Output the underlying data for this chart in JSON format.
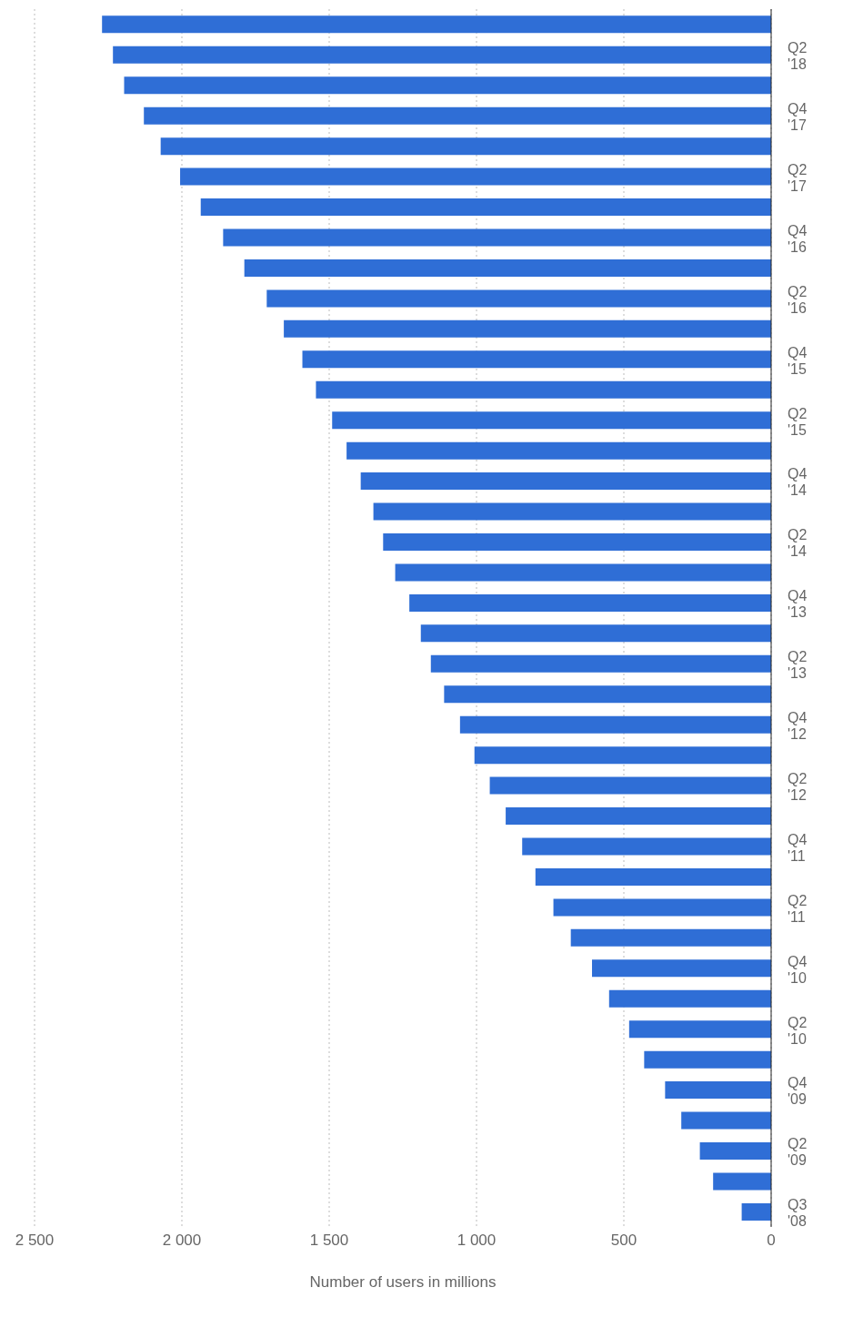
{
  "chart_data": {
    "type": "bar",
    "orientation": "horizontal",
    "xlabel": "Number of users in millions",
    "categories": [
      null,
      "Q2 '18",
      null,
      "Q4 '17",
      null,
      "Q2 '17",
      null,
      "Q4 '16",
      null,
      "Q2 '16",
      null,
      "Q4 '15",
      null,
      "Q2 '15",
      null,
      "Q4 '14",
      null,
      "Q2 '14",
      null,
      "Q4 '13",
      null,
      "Q2 '13",
      null,
      "Q4 '12",
      null,
      "Q2 '12",
      null,
      "Q4 '11",
      null,
      "Q2 '11",
      null,
      "Q4 '10",
      null,
      "Q2 '10",
      null,
      "Q4 '09",
      null,
      "Q2 '09",
      null,
      "Q3 '08"
    ],
    "values": [
      2271,
      2234,
      2196,
      2129,
      2072,
      2006,
      1936,
      1860,
      1788,
      1712,
      1654,
      1591,
      1545,
      1490,
      1441,
      1393,
      1350,
      1317,
      1276,
      1228,
      1189,
      1155,
      1110,
      1056,
      1007,
      955,
      901,
      845,
      800,
      739,
      680,
      608,
      550,
      482,
      431,
      360,
      305,
      242,
      197,
      100
    ],
    "color": "#2f6ed6",
    "xlim": [
      2500,
      0
    ],
    "xticks": [
      {
        "value": 2500,
        "label": "2 500"
      },
      {
        "value": 2000,
        "label": "2 000"
      },
      {
        "value": 1500,
        "label": "1 500"
      },
      {
        "value": 1000,
        "label": "1 000"
      },
      500,
      0
    ],
    "grid": "x"
  }
}
